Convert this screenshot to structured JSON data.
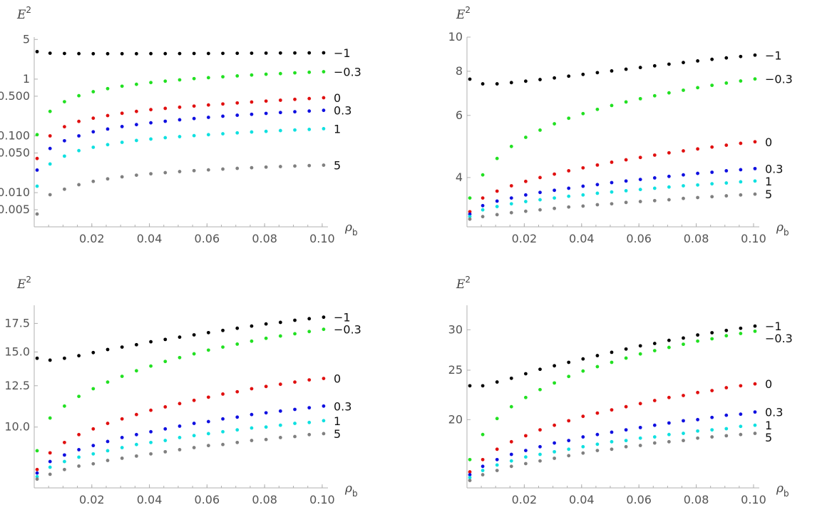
{
  "chart_data": [
    {
      "type": "scatter",
      "scale_y": "log",
      "xlabel": "ρ",
      "xlabel_sub": "b",
      "ylabel": "E",
      "ylabel_sup": "2",
      "xlim": [
        0,
        0.102
      ],
      "ylim": [
        0.0025,
        5.5
      ],
      "x_ticks": [
        0.02,
        0.04,
        0.06,
        0.08,
        0.1
      ],
      "x_tick_labels": [
        "0.02",
        "0.04",
        "0.06",
        "0.08",
        "0.10"
      ],
      "y_ticks": [
        0.005,
        0.01,
        0.05,
        0.1,
        0.5,
        1,
        5
      ],
      "y_tick_labels": [
        "0.005",
        "0.010",
        "0.050",
        "0.100",
        "0.500",
        "1",
        "5"
      ],
      "x": [
        0.001,
        0.0055,
        0.0105,
        0.0155,
        0.0205,
        0.0255,
        0.0305,
        0.0355,
        0.0405,
        0.0455,
        0.0505,
        0.0555,
        0.0605,
        0.0655,
        0.0705,
        0.0755,
        0.0805,
        0.0855,
        0.0905,
        0.0955,
        0.1005
      ],
      "series": [
        {
          "name": "−1",
          "color": "#000000",
          "values": [
            3.05,
            2.86,
            2.83,
            2.81,
            2.8,
            2.8,
            2.8,
            2.8,
            2.81,
            2.81,
            2.82,
            2.83,
            2.83,
            2.84,
            2.85,
            2.86,
            2.87,
            2.88,
            2.89,
            2.9,
            2.91
          ]
        },
        {
          "name": "−0.3",
          "color": "#22e022",
          "values": [
            0.105,
            0.27,
            0.4,
            0.51,
            0.6,
            0.68,
            0.75,
            0.81,
            0.87,
            0.92,
            0.97,
            1.02,
            1.06,
            1.1,
            1.14,
            1.18,
            1.22,
            1.25,
            1.29,
            1.32,
            1.35
          ]
        },
        {
          "name": "0",
          "color": "#e01010",
          "values": [
            0.04,
            0.1,
            0.145,
            0.18,
            0.205,
            0.228,
            0.25,
            0.27,
            0.29,
            0.305,
            0.32,
            0.335,
            0.35,
            0.365,
            0.38,
            0.395,
            0.41,
            0.425,
            0.44,
            0.455,
            0.47
          ]
        },
        {
          "name": "0.3",
          "color": "#1010e0",
          "values": [
            0.025,
            0.06,
            0.082,
            0.1,
            0.118,
            0.132,
            0.146,
            0.158,
            0.17,
            0.181,
            0.192,
            0.202,
            0.212,
            0.222,
            0.231,
            0.24,
            0.249,
            0.258,
            0.266,
            0.274,
            0.282
          ]
        },
        {
          "name": "1",
          "color": "#10e0e0",
          "values": [
            0.013,
            0.032,
            0.044,
            0.055,
            0.063,
            0.07,
            0.077,
            0.083,
            0.088,
            0.093,
            0.097,
            0.101,
            0.105,
            0.109,
            0.113,
            0.117,
            0.12,
            0.124,
            0.127,
            0.13,
            0.134
          ]
        },
        {
          "name": "5",
          "color": "#808080",
          "values": [
            0.0042,
            0.0092,
            0.0115,
            0.0138,
            0.0158,
            0.0175,
            0.019,
            0.0203,
            0.0215,
            0.0225,
            0.0235,
            0.0244,
            0.0252,
            0.026,
            0.0268,
            0.0275,
            0.0282,
            0.0288,
            0.0294,
            0.03,
            0.0305
          ]
        }
      ]
    },
    {
      "type": "scatter",
      "scale_y": "log",
      "xlabel": "ρ",
      "xlabel_sub": "b",
      "ylabel": "E",
      "ylabel_sup": "2",
      "xlim": [
        0,
        0.102
      ],
      "ylim": [
        2.9,
        10
      ],
      "x_ticks": [
        0.02,
        0.04,
        0.06,
        0.08,
        0.1
      ],
      "x_tick_labels": [
        "0.02",
        "0.04",
        "0.06",
        "0.08",
        "0.10"
      ],
      "y_ticks": [
        4,
        6,
        8,
        10
      ],
      "y_tick_labels": [
        "4",
        "6",
        "8",
        "10"
      ],
      "x": [
        0.001,
        0.0055,
        0.0105,
        0.0155,
        0.0205,
        0.0255,
        0.0305,
        0.0355,
        0.0405,
        0.0455,
        0.0505,
        0.0555,
        0.0605,
        0.0655,
        0.0705,
        0.0755,
        0.0805,
        0.0855,
        0.0905,
        0.0955,
        0.1005
      ],
      "series": [
        {
          "name": "−1",
          "color": "#000000",
          "values": [
            7.6,
            7.37,
            7.37,
            7.43,
            7.5,
            7.58,
            7.66,
            7.75,
            7.84,
            7.93,
            8.02,
            8.11,
            8.2,
            8.29,
            8.38,
            8.47,
            8.56,
            8.65,
            8.73,
            8.81,
            8.89
          ]
        },
        {
          "name": "−0.3",
          "color": "#22e022",
          "values": [
            3.5,
            4.07,
            4.53,
            4.9,
            5.2,
            5.45,
            5.68,
            5.89,
            6.07,
            6.24,
            6.4,
            6.55,
            6.69,
            6.82,
            6.95,
            7.07,
            7.19,
            7.3,
            7.41,
            7.51,
            7.61
          ]
        },
        {
          "name": "0",
          "color": "#e01010",
          "values": [
            3.2,
            3.5,
            3.66,
            3.79,
            3.9,
            4.0,
            4.09,
            4.18,
            4.26,
            4.34,
            4.42,
            4.49,
            4.56,
            4.63,
            4.7,
            4.76,
            4.82,
            4.88,
            4.94,
            5.0,
            5.05
          ]
        },
        {
          "name": "0.3",
          "color": "#1010e0",
          "values": [
            3.15,
            3.33,
            3.43,
            3.5,
            3.57,
            3.63,
            3.68,
            3.73,
            3.78,
            3.82,
            3.87,
            3.91,
            3.95,
            3.99,
            4.03,
            4.07,
            4.11,
            4.14,
            4.18,
            4.21,
            4.24
          ]
        },
        {
          "name": "1",
          "color": "#10e0e0",
          "values": [
            3.1,
            3.24,
            3.31,
            3.37,
            3.42,
            3.46,
            3.5,
            3.54,
            3.57,
            3.61,
            3.64,
            3.67,
            3.7,
            3.73,
            3.76,
            3.79,
            3.81,
            3.84,
            3.86,
            3.89,
            3.91
          ]
        },
        {
          "name": "5",
          "color": "#808080",
          "values": [
            3.05,
            3.1,
            3.14,
            3.18,
            3.21,
            3.24,
            3.27,
            3.3,
            3.32,
            3.35,
            3.37,
            3.4,
            3.42,
            3.44,
            3.46,
            3.49,
            3.51,
            3.53,
            3.55,
            3.57,
            3.59
          ]
        }
      ]
    },
    {
      "type": "scatter",
      "scale_y": "log",
      "xlabel": "ρ",
      "xlabel_sub": "b",
      "ylabel": "E",
      "ylabel_sup": "2",
      "xlim": [
        0,
        0.102
      ],
      "ylim": [
        7.2,
        19.3
      ],
      "x_ticks": [
        0.02,
        0.04,
        0.06,
        0.08,
        0.1
      ],
      "x_tick_labels": [
        "0.02",
        "0.04",
        "0.06",
        "0.08",
        "0.10"
      ],
      "y_ticks": [
        10,
        12.5,
        15,
        17.5
      ],
      "y_tick_labels": [
        "10.0",
        "12.5",
        "15.0",
        "17.5"
      ],
      "x": [
        0.001,
        0.0055,
        0.0105,
        0.0155,
        0.0205,
        0.0255,
        0.0305,
        0.0355,
        0.0405,
        0.0455,
        0.0505,
        0.0555,
        0.0605,
        0.0655,
        0.0705,
        0.0755,
        0.0805,
        0.0855,
        0.0905,
        0.0955,
        0.1005
      ],
      "series": [
        {
          "name": "−1",
          "color": "#000000",
          "values": [
            14.5,
            14.35,
            14.5,
            14.7,
            14.95,
            15.2,
            15.4,
            15.6,
            15.85,
            16.05,
            16.25,
            16.45,
            16.65,
            16.85,
            17.05,
            17.25,
            17.45,
            17.6,
            17.8,
            17.95,
            18.1
          ]
        },
        {
          "name": "−0.3",
          "color": "#22e022",
          "values": [
            8.8,
            10.5,
            11.2,
            11.8,
            12.3,
            12.75,
            13.15,
            13.55,
            13.9,
            14.25,
            14.55,
            14.85,
            15.15,
            15.4,
            15.65,
            15.9,
            16.15,
            16.35,
            16.55,
            16.75,
            16.95
          ]
        },
        {
          "name": "0",
          "color": "#e01010",
          "values": [
            7.95,
            8.7,
            9.2,
            9.6,
            9.9,
            10.2,
            10.45,
            10.7,
            10.95,
            11.15,
            11.35,
            11.55,
            11.75,
            11.95,
            12.1,
            12.3,
            12.45,
            12.6,
            12.75,
            12.9,
            13.0
          ]
        },
        {
          "name": "0.3",
          "color": "#1010e0",
          "values": [
            7.8,
            8.3,
            8.6,
            8.85,
            9.05,
            9.25,
            9.45,
            9.6,
            9.75,
            9.9,
            10.05,
            10.2,
            10.3,
            10.45,
            10.55,
            10.7,
            10.8,
            10.9,
            11.0,
            11.1,
            11.2
          ]
        },
        {
          "name": "1",
          "color": "#10e0e0",
          "values": [
            7.65,
            8.05,
            8.3,
            8.5,
            8.65,
            8.8,
            8.95,
            9.1,
            9.2,
            9.3,
            9.45,
            9.55,
            9.65,
            9.75,
            9.85,
            9.95,
            10.0,
            10.1,
            10.2,
            10.25,
            10.35
          ]
        },
        {
          "name": "5",
          "color": "#808080",
          "values": [
            7.55,
            7.75,
            7.95,
            8.1,
            8.2,
            8.35,
            8.45,
            8.55,
            8.65,
            8.75,
            8.85,
            8.95,
            9.05,
            9.1,
            9.2,
            9.3,
            9.35,
            9.45,
            9.5,
            9.6,
            9.65
          ]
        }
      ]
    },
    {
      "type": "scatter",
      "scale_y": "log",
      "xlabel": "ρ",
      "xlabel_sub": "b",
      "ylabel": "E",
      "ylabel_sup": "2",
      "xlim": [
        0,
        0.102
      ],
      "ylim": [
        14.7,
        33.5
      ],
      "x_ticks": [
        0.02,
        0.04,
        0.06,
        0.08,
        0.1
      ],
      "x_tick_labels": [
        "0.02",
        "0.04",
        "0.06",
        "0.08",
        "0.10"
      ],
      "y_ticks": [
        20,
        25,
        30
      ],
      "y_tick_labels": [
        "20",
        "25",
        "30"
      ],
      "x": [
        0.001,
        0.0055,
        0.0105,
        0.0155,
        0.0205,
        0.0255,
        0.0305,
        0.0355,
        0.0405,
        0.0455,
        0.0505,
        0.0555,
        0.0605,
        0.0655,
        0.0705,
        0.0755,
        0.0805,
        0.0855,
        0.0905,
        0.0955,
        0.1005
      ],
      "series": [
        {
          "name": "−1",
          "color": "#000000",
          "values": [
            23.3,
            23.3,
            23.7,
            24.1,
            24.6,
            25.1,
            25.5,
            25.9,
            26.3,
            26.7,
            27.1,
            27.5,
            27.9,
            28.2,
            28.6,
            28.9,
            29.3,
            29.6,
            29.9,
            30.2,
            30.5
          ]
        },
        {
          "name": "−0.3",
          "color": "#22e022",
          "values": [
            16.7,
            18.7,
            20.1,
            21.2,
            22.1,
            22.9,
            23.6,
            24.3,
            24.9,
            25.4,
            25.9,
            26.4,
            26.9,
            27.3,
            27.7,
            28.1,
            28.5,
            28.8,
            29.2,
            29.5,
            29.8
          ]
        },
        {
          "name": "0",
          "color": "#e01010",
          "values": [
            15.8,
            16.7,
            17.5,
            18.1,
            18.6,
            19.1,
            19.5,
            19.9,
            20.3,
            20.6,
            20.9,
            21.2,
            21.5,
            21.8,
            22.1,
            22.3,
            22.6,
            22.8,
            23.1,
            23.3,
            23.5
          ]
        },
        {
          "name": "0.3",
          "color": "#1010e0",
          "values": [
            15.6,
            16.2,
            16.7,
            17.1,
            17.4,
            17.7,
            18.0,
            18.2,
            18.5,
            18.7,
            18.9,
            19.1,
            19.3,
            19.5,
            19.7,
            19.9,
            20.0,
            20.2,
            20.4,
            20.5,
            20.7
          ]
        },
        {
          "name": "1",
          "color": "#10e0e0",
          "values": [
            15.4,
            15.9,
            16.3,
            16.6,
            16.9,
            17.1,
            17.3,
            17.5,
            17.7,
            17.9,
            18.1,
            18.2,
            18.4,
            18.5,
            18.7,
            18.8,
            19.0,
            19.1,
            19.2,
            19.4,
            19.5
          ]
        },
        {
          "name": "5",
          "color": "#808080",
          "values": [
            15.2,
            15.6,
            15.9,
            16.2,
            16.4,
            16.6,
            16.8,
            17.0,
            17.2,
            17.4,
            17.5,
            17.7,
            17.8,
            18.0,
            18.1,
            18.2,
            18.4,
            18.5,
            18.6,
            18.7,
            18.8
          ]
        }
      ]
    }
  ]
}
